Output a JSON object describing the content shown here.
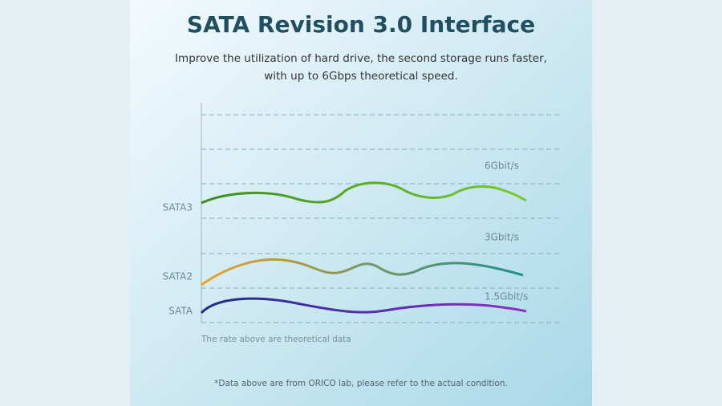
{
  "header": {
    "title": "SATA Revision 3.0 Interface",
    "subtitle": [
      "Improve the utilization of hard drive, the second storage runs faster,",
      "with up to 6Gbps theoretical speed."
    ]
  },
  "diagram": {
    "lines": [
      {
        "label": "SATA3",
        "speed": "6Gbit/s"
      },
      {
        "label": "SATA2",
        "speed": "3Gbit/s"
      },
      {
        "label": "SATA",
        "speed": "1.5Gbit/s"
      }
    ],
    "note": "The rate above are theoretical data"
  },
  "footer": {
    "text": "*Data above are from ORICO lab, please refer to the actual condition."
  }
}
